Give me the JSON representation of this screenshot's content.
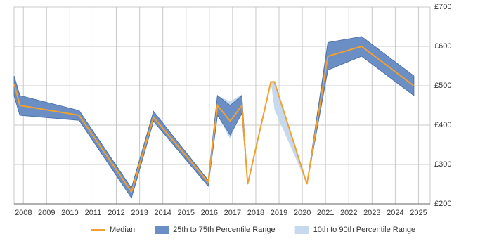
{
  "chart_data": {
    "type": "line",
    "x": [
      2007.6,
      2007.85,
      2010.4,
      2012.65,
      2013.6,
      2015.95,
      2016.35,
      2016.9,
      2017.4,
      2017.65,
      2018.65,
      2018.8,
      2020.2,
      2021.1,
      2022.55,
      2024.8
    ],
    "series": [
      {
        "name": "Median",
        "color": "#f0a030",
        "values": [
          505,
          450,
          425,
          230,
          420,
          255,
          450,
          410,
          450,
          250,
          510,
          510,
          250,
          575,
          600,
          500
        ]
      },
      {
        "name": "25th to 75th Percentile Range",
        "color": "#6b8fc4",
        "low": [
          475,
          425,
          412,
          215,
          410,
          245,
          425,
          375,
          430,
          250,
          510,
          510,
          250,
          540,
          575,
          475
        ],
        "high": [
          525,
          475,
          437,
          240,
          435,
          260,
          475,
          450,
          475,
          250,
          510,
          510,
          250,
          610,
          625,
          525
        ]
      },
      {
        "name": "10th to 90th Percentile Range",
        "color": "#c6d9ee",
        "low": [
          475,
          425,
          412,
          215,
          410,
          245,
          425,
          365,
          440,
          250,
          510,
          440,
          250,
          540,
          575,
          475
        ],
        "high": [
          525,
          475,
          437,
          240,
          435,
          260,
          475,
          460,
          478,
          250,
          510,
          510,
          250,
          610,
          625,
          525
        ]
      }
    ],
    "xlim": [
      2007.6,
      2025.5
    ],
    "xticks": [
      2008,
      2009,
      2010,
      2011,
      2012,
      2013,
      2014,
      2015,
      2016,
      2017,
      2018,
      2019,
      2020,
      2021,
      2022,
      2023,
      2024,
      2025
    ],
    "ylim": [
      200,
      700
    ],
    "yticks": [
      {
        "value": 200,
        "label": "£200"
      },
      {
        "value": 300,
        "label": "£300"
      },
      {
        "value": 400,
        "label": "£400"
      },
      {
        "value": 500,
        "label": "£500"
      },
      {
        "value": 600,
        "label": "£600"
      },
      {
        "value": 700,
        "label": "£700"
      }
    ],
    "grid": true
  }
}
